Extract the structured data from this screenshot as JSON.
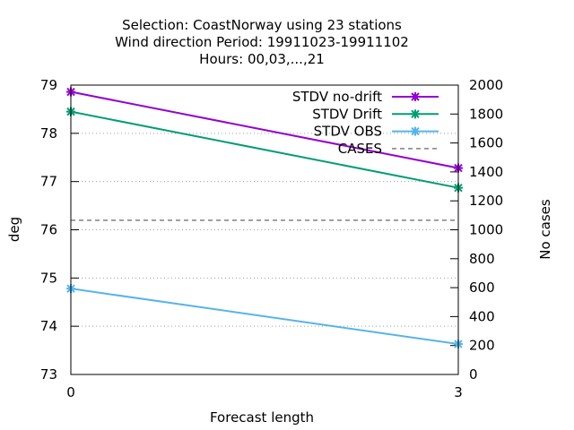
{
  "chart_data": {
    "type": "line",
    "title_lines": [
      "Selection: CoastNorway using    23 stations",
      "Wind direction   Period: 19911023-19911102",
      "Hours:  00,03,...,21"
    ],
    "xlabel": "Forecast length",
    "ylabel": "deg",
    "y2label": "No cases",
    "x": [
      0,
      3
    ],
    "x_ticks": [
      "0",
      "3"
    ],
    "xlim": [
      0,
      3
    ],
    "ylim": [
      73,
      79
    ],
    "y_ticks": [
      "73",
      "74",
      "75",
      "76",
      "77",
      "78",
      "79"
    ],
    "y2lim": [
      0,
      2000
    ],
    "y2_ticks": [
      "0",
      "200",
      "400",
      "600",
      "800",
      "1000",
      "1200",
      "1400",
      "1600",
      "1800",
      "2000"
    ],
    "grid": "horizontal dotted at left-axis ticks",
    "legend_position": "top-right",
    "series": [
      {
        "name": "STDV no-drift",
        "values": [
          78.86,
          77.28
        ],
        "color": "#9400d3",
        "axis": "left",
        "style": "line-points"
      },
      {
        "name": "STDV Drift",
        "values": [
          78.45,
          76.87
        ],
        "color": "#009e73",
        "axis": "left",
        "style": "line-points"
      },
      {
        "name": "STDV OBS",
        "values": [
          74.78,
          73.63
        ],
        "color": "#56b4e9",
        "axis": "left",
        "style": "line-points"
      },
      {
        "name": "CASES",
        "values": [
          1066,
          1066
        ],
        "color": "#808080",
        "axis": "right",
        "style": "dashed"
      }
    ]
  }
}
